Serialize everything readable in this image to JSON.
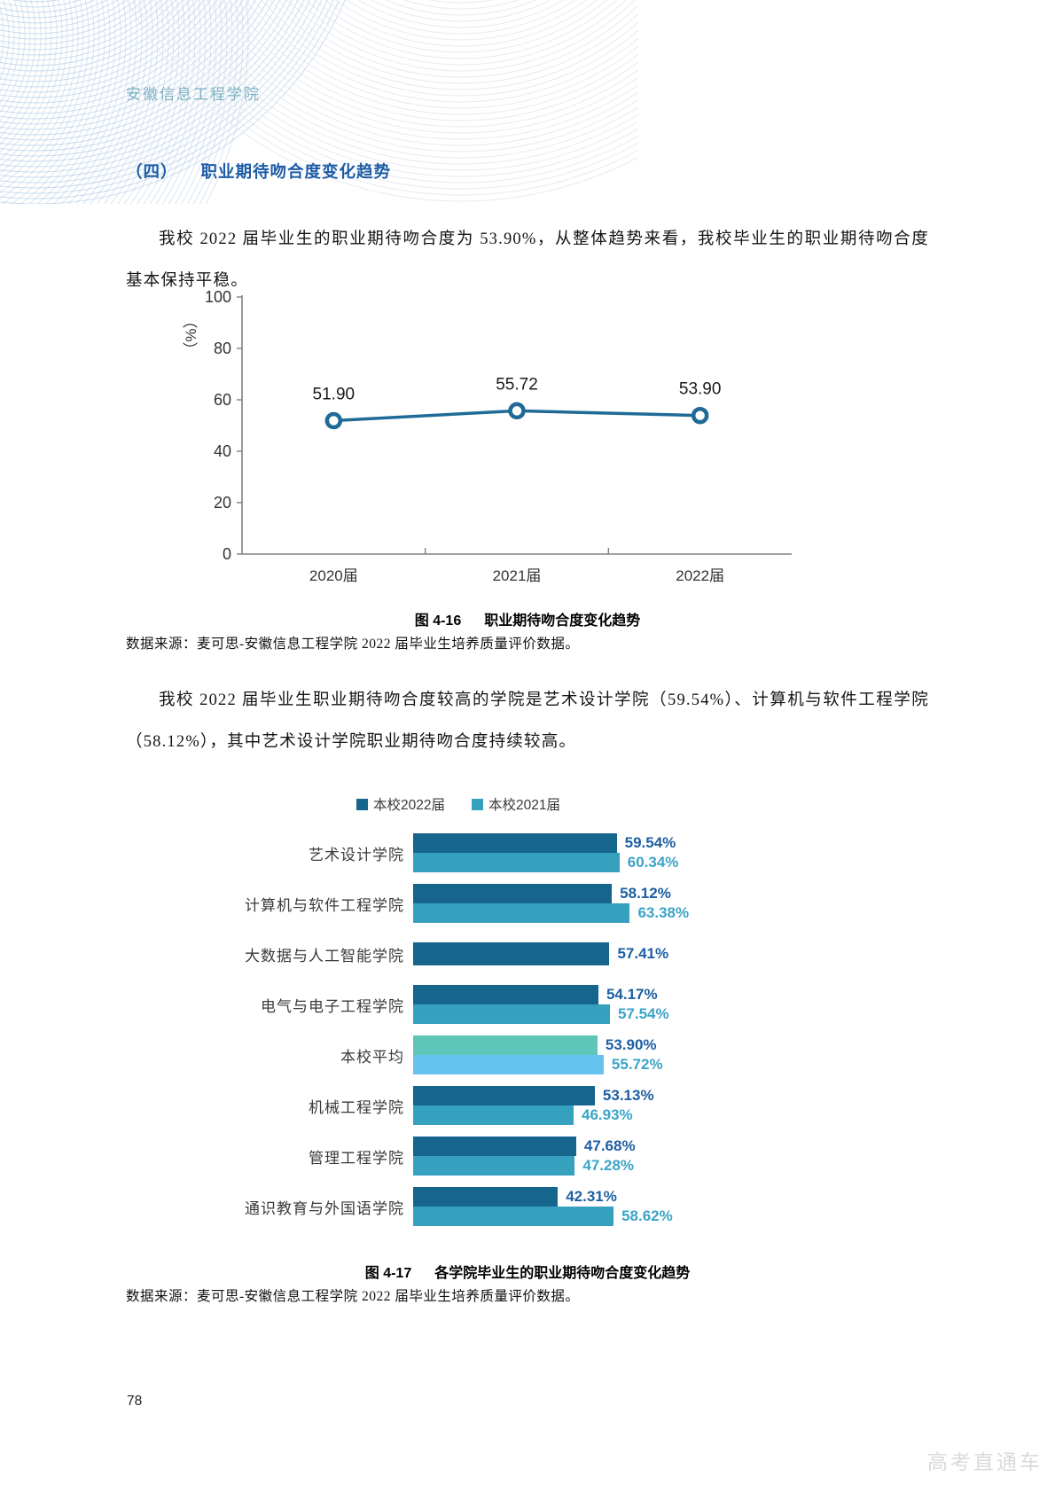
{
  "page": {
    "header": "安徽信息工程学院",
    "section": {
      "label": "（四）",
      "title": "职业期待吻合度变化趋势"
    },
    "paragraph1": "我校 2022 届毕业生的职业期待吻合度为 53.90%，从整体趋势来看，我校毕业生的职业期待吻合度基本保持平稳。",
    "paragraph2": "我校 2022 届毕业生职业期待吻合度较高的学院是艺术设计学院（59.54%）、计算机与软件工程学院（58.12%），其中艺术设计学院职业期待吻合度持续较高。",
    "figures": {
      "fig16": {
        "label": "图 4-16",
        "title": "职业期待吻合度变化趋势",
        "source": "数据来源：麦可思-安徽信息工程学院 2022 届毕业生培养质量评价数据。"
      },
      "fig17": {
        "label": "图 4-17",
        "title": "各学院毕业生的职业期待吻合度变化趋势",
        "source": "数据来源：麦可思-安徽信息工程学院 2022 届毕业生培养质量评价数据。"
      }
    },
    "footer": {
      "page_number": "78",
      "watermark": "高考直通车"
    }
  },
  "colors": {
    "heading_blue": "#1E5CA6",
    "header_teal": "#7FB0C4",
    "line_blue": "#1F6A96",
    "bar_2022": "#15658D",
    "bar_2021": "#36A0BF",
    "bar_avg_2022": "#5EC6B9",
    "bar_avg_2021": "#66C3F0",
    "label_2022": "#1E5FA2",
    "label_2021": "#3BA4C6",
    "axis_gray": "#808080",
    "watermark_gray": "#DADADA"
  },
  "chart_data": [
    {
      "type": "line",
      "title": "职业期待吻合度变化趋势",
      "categories": [
        "2020届",
        "2021届",
        "2022届"
      ],
      "values": [
        51.9,
        55.72,
        53.9
      ],
      "value_labels": [
        "51.90",
        "55.72",
        "53.90"
      ],
      "ylabel": "（%）",
      "xlabel": "",
      "ylim": [
        0,
        100
      ],
      "yticks": [
        0,
        20,
        40,
        60,
        80,
        100
      ],
      "grid": false,
      "legend_position": "none",
      "line_color": "#1F6A96",
      "axis_color": "#808080"
    },
    {
      "type": "bar",
      "orientation": "horizontal",
      "title": "各学院毕业生的职业期待吻合度变化趋势",
      "legend_position": "top",
      "xlim": [
        0,
        70
      ],
      "grid": false,
      "series": [
        {
          "name": "本校2022届",
          "bar_color": "#15658D",
          "label_color": "#1E5FA2"
        },
        {
          "name": "本校2021届",
          "bar_color": "#36A0BF",
          "label_color": "#3BA4C6"
        }
      ],
      "categories": [
        "艺术设计学院",
        "计算机与软件工程学院",
        "大数据与人工智能学院",
        "电气与电子工程学院",
        "本校平均",
        "机械工程学院",
        "管理工程学院",
        "通识教育与外国语学院"
      ],
      "rows": [
        {
          "category": "艺术设计学院",
          "values": [
            59.54,
            60.34
          ],
          "value_labels": [
            "59.54%",
            "60.34%"
          ],
          "bar_colors": null
        },
        {
          "category": "计算机与软件工程学院",
          "values": [
            58.12,
            63.38
          ],
          "value_labels": [
            "58.12%",
            "63.38%"
          ],
          "bar_colors": null
        },
        {
          "category": "大数据与人工智能学院",
          "values": [
            57.41,
            null
          ],
          "value_labels": [
            "57.41%",
            null
          ],
          "bar_colors": null
        },
        {
          "category": "电气与电子工程学院",
          "values": [
            54.17,
            57.54
          ],
          "value_labels": [
            "54.17%",
            "57.54%"
          ],
          "bar_colors": null
        },
        {
          "category": "本校平均",
          "values": [
            53.9,
            55.72
          ],
          "value_labels": [
            "53.90%",
            "55.72%"
          ],
          "bar_colors": [
            "#5EC6B9",
            "#66C3F0"
          ]
        },
        {
          "category": "机械工程学院",
          "values": [
            53.13,
            46.93
          ],
          "value_labels": [
            "53.13%",
            "46.93%"
          ],
          "bar_colors": null
        },
        {
          "category": "管理工程学院",
          "values": [
            47.68,
            47.28
          ],
          "value_labels": [
            "47.68%",
            "47.28%"
          ],
          "bar_colors": null
        },
        {
          "category": "通识教育与外国语学院",
          "values": [
            42.31,
            58.62
          ],
          "value_labels": [
            "42.31%",
            "58.62%"
          ],
          "bar_colors": null
        }
      ]
    }
  ]
}
